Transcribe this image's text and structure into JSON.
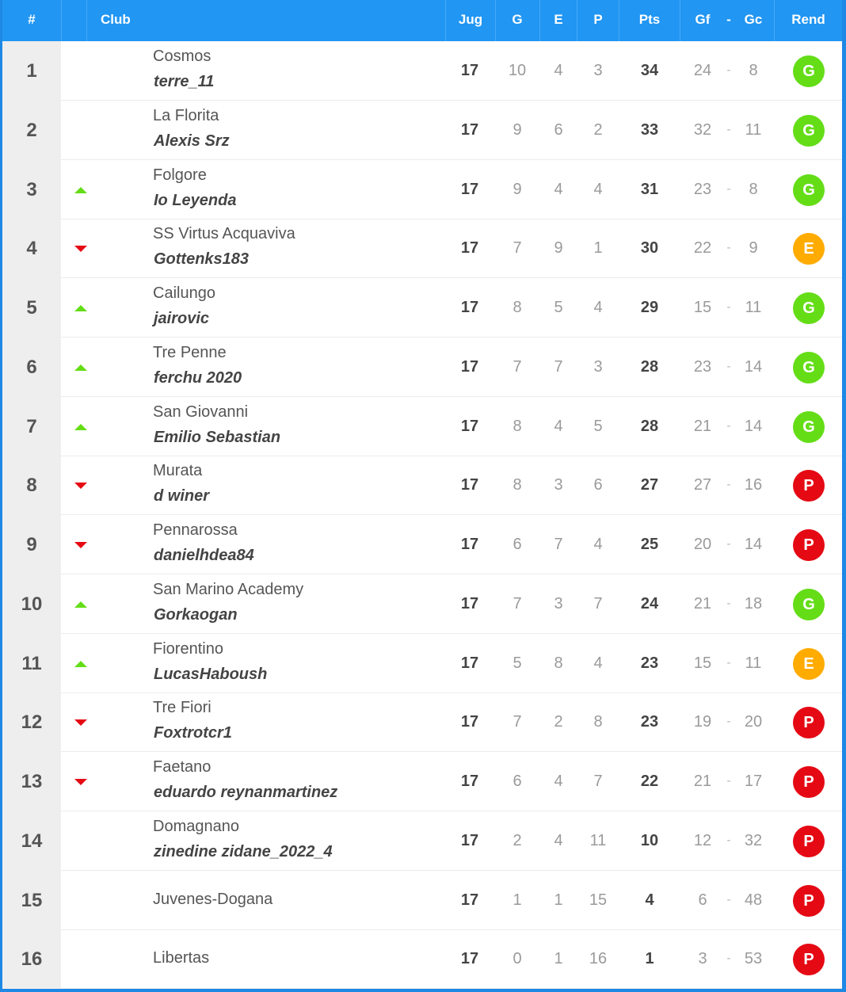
{
  "header": {
    "rank": "#",
    "club": "Club",
    "played": "Jug",
    "won": "G",
    "drawn": "E",
    "lost": "P",
    "points": "Pts",
    "goals_for": "Gf",
    "goals_sep": "-",
    "goals_against": "Gc",
    "form": "Rend"
  },
  "colors": {
    "header_bg": "#2196f3",
    "trend_up": "#64dd17",
    "trend_down": "#e50914",
    "badge_G": "#64dd17",
    "badge_E": "#ffab00",
    "badge_P": "#e50914"
  },
  "rows": [
    {
      "rank": "1",
      "trend": "none",
      "club": "Cosmos",
      "manager": "terre_11",
      "played": "17",
      "won": "10",
      "drawn": "4",
      "lost": "3",
      "points": "34",
      "gf": "24",
      "sep": "-",
      "gc": "8",
      "form": "G"
    },
    {
      "rank": "2",
      "trend": "none",
      "club": "La Florita",
      "manager": "Alexis Srz",
      "played": "17",
      "won": "9",
      "drawn": "6",
      "lost": "2",
      "points": "33",
      "gf": "32",
      "sep": "-",
      "gc": "11",
      "form": "G"
    },
    {
      "rank": "3",
      "trend": "up",
      "club": "Folgore",
      "manager": "Io Leyenda",
      "played": "17",
      "won": "9",
      "drawn": "4",
      "lost": "4",
      "points": "31",
      "gf": "23",
      "sep": "-",
      "gc": "8",
      "form": "G"
    },
    {
      "rank": "4",
      "trend": "down",
      "club": "SS Virtus Acquaviva",
      "manager": "Gottenks183",
      "played": "17",
      "won": "7",
      "drawn": "9",
      "lost": "1",
      "points": "30",
      "gf": "22",
      "sep": "-",
      "gc": "9",
      "form": "E"
    },
    {
      "rank": "5",
      "trend": "up",
      "club": "Cailungo",
      "manager": "jairovic",
      "played": "17",
      "won": "8",
      "drawn": "5",
      "lost": "4",
      "points": "29",
      "gf": "15",
      "sep": "-",
      "gc": "11",
      "form": "G"
    },
    {
      "rank": "6",
      "trend": "up",
      "club": "Tre Penne",
      "manager": "ferchu 2020",
      "played": "17",
      "won": "7",
      "drawn": "7",
      "lost": "3",
      "points": "28",
      "gf": "23",
      "sep": "-",
      "gc": "14",
      "form": "G"
    },
    {
      "rank": "7",
      "trend": "up",
      "club": "San Giovanni",
      "manager": "Emilio Sebastian",
      "played": "17",
      "won": "8",
      "drawn": "4",
      "lost": "5",
      "points": "28",
      "gf": "21",
      "sep": "-",
      "gc": "14",
      "form": "G"
    },
    {
      "rank": "8",
      "trend": "down",
      "club": "Murata",
      "manager": "d winer",
      "played": "17",
      "won": "8",
      "drawn": "3",
      "lost": "6",
      "points": "27",
      "gf": "27",
      "sep": "-",
      "gc": "16",
      "form": "P"
    },
    {
      "rank": "9",
      "trend": "down",
      "club": "Pennarossa",
      "manager": "danielhdea84",
      "played": "17",
      "won": "6",
      "drawn": "7",
      "lost": "4",
      "points": "25",
      "gf": "20",
      "sep": "-",
      "gc": "14",
      "form": "P"
    },
    {
      "rank": "10",
      "trend": "up",
      "club": "San Marino Academy",
      "manager": "Gorkaogan",
      "played": "17",
      "won": "7",
      "drawn": "3",
      "lost": "7",
      "points": "24",
      "gf": "21",
      "sep": "-",
      "gc": "18",
      "form": "G"
    },
    {
      "rank": "11",
      "trend": "up",
      "club": "Fiorentino",
      "manager": "LucasHaboush",
      "played": "17",
      "won": "5",
      "drawn": "8",
      "lost": "4",
      "points": "23",
      "gf": "15",
      "sep": "-",
      "gc": "11",
      "form": "E"
    },
    {
      "rank": "12",
      "trend": "down",
      "club": "Tre Fiori",
      "manager": "Foxtrotcr1",
      "played": "17",
      "won": "7",
      "drawn": "2",
      "lost": "8",
      "points": "23",
      "gf": "19",
      "sep": "-",
      "gc": "20",
      "form": "P"
    },
    {
      "rank": "13",
      "trend": "down",
      "club": "Faetano",
      "manager": "eduardo reynanmartinez",
      "played": "17",
      "won": "6",
      "drawn": "4",
      "lost": "7",
      "points": "22",
      "gf": "21",
      "sep": "-",
      "gc": "17",
      "form": "P"
    },
    {
      "rank": "14",
      "trend": "none",
      "club": "Domagnano",
      "manager": "zinedine zidane_2022_4",
      "played": "17",
      "won": "2",
      "drawn": "4",
      "lost": "11",
      "points": "10",
      "gf": "12",
      "sep": "-",
      "gc": "32",
      "form": "P"
    },
    {
      "rank": "15",
      "trend": "none",
      "club": "Juvenes-Dogana",
      "manager": "",
      "played": "17",
      "won": "1",
      "drawn": "1",
      "lost": "15",
      "points": "4",
      "gf": "6",
      "sep": "-",
      "gc": "48",
      "form": "P"
    },
    {
      "rank": "16",
      "trend": "none",
      "club": "Libertas",
      "manager": "",
      "played": "17",
      "won": "0",
      "drawn": "1",
      "lost": "16",
      "points": "1",
      "gf": "3",
      "sep": "-",
      "gc": "53",
      "form": "P"
    }
  ]
}
